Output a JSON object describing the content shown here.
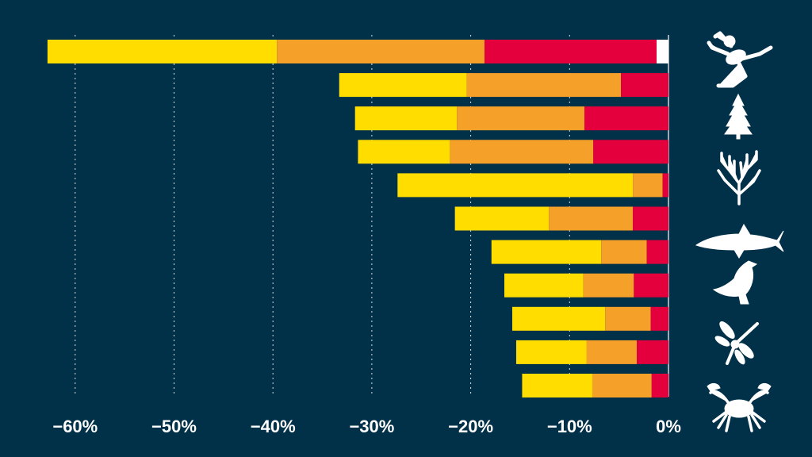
{
  "chart_data": {
    "type": "bar",
    "orientation": "horizontal",
    "stacked": true,
    "title": "",
    "xlabel": "",
    "ylabel": "",
    "xlim": [
      -63,
      0
    ],
    "x_ticks": [
      -60,
      -50,
      -40,
      -30,
      -20,
      -10,
      0
    ],
    "x_tick_labels": [
      "−60%",
      "−50%",
      "−40%",
      "−30%",
      "−20%",
      "−10%",
      "0%"
    ],
    "grid": "vertical dotted",
    "colors": {
      "background": "#013049",
      "segment_1": "#FFDD00",
      "segment_2": "#F5A029",
      "segment_3": "#E4003C",
      "segment_4": "#FFFFFF"
    },
    "categories": [
      "frog-icon",
      "conifer-icon",
      "coral-icon",
      "blank-1",
      "blank-2",
      "shark-icon",
      "eagle-icon",
      "blank-3",
      "dragonfly-icon",
      "blank-4",
      "crab-icon"
    ],
    "rows": [
      {
        "icon": "frog-icon",
        "segments": [
          23.2,
          21.0,
          17.4,
          1.2
        ]
      },
      {
        "icon": "",
        "segments": [
          12.9,
          15.6,
          4.8,
          0
        ]
      },
      {
        "icon": "conifer-icon",
        "segments": [
          10.3,
          12.9,
          8.5,
          0
        ]
      },
      {
        "icon": "",
        "segments": [
          9.3,
          14.5,
          7.6,
          0
        ]
      },
      {
        "icon": "coral-icon",
        "segments": [
          23.8,
          3.0,
          0.6,
          0
        ]
      },
      {
        "icon": "",
        "segments": [
          9.5,
          8.5,
          3.6,
          0
        ]
      },
      {
        "icon": "shark-icon",
        "segments": [
          11.1,
          4.6,
          2.2,
          0
        ]
      },
      {
        "icon": "eagle-icon",
        "segments": [
          8.0,
          5.1,
          3.5,
          0
        ]
      },
      {
        "icon": "",
        "segments": [
          9.4,
          4.6,
          1.8,
          0
        ]
      },
      {
        "icon": "dragonfly-icon",
        "segments": [
          7.1,
          5.1,
          3.2,
          0
        ]
      },
      {
        "icon": "crab-icon",
        "segments": [
          7.1,
          6.0,
          1.7,
          0
        ]
      }
    ]
  }
}
